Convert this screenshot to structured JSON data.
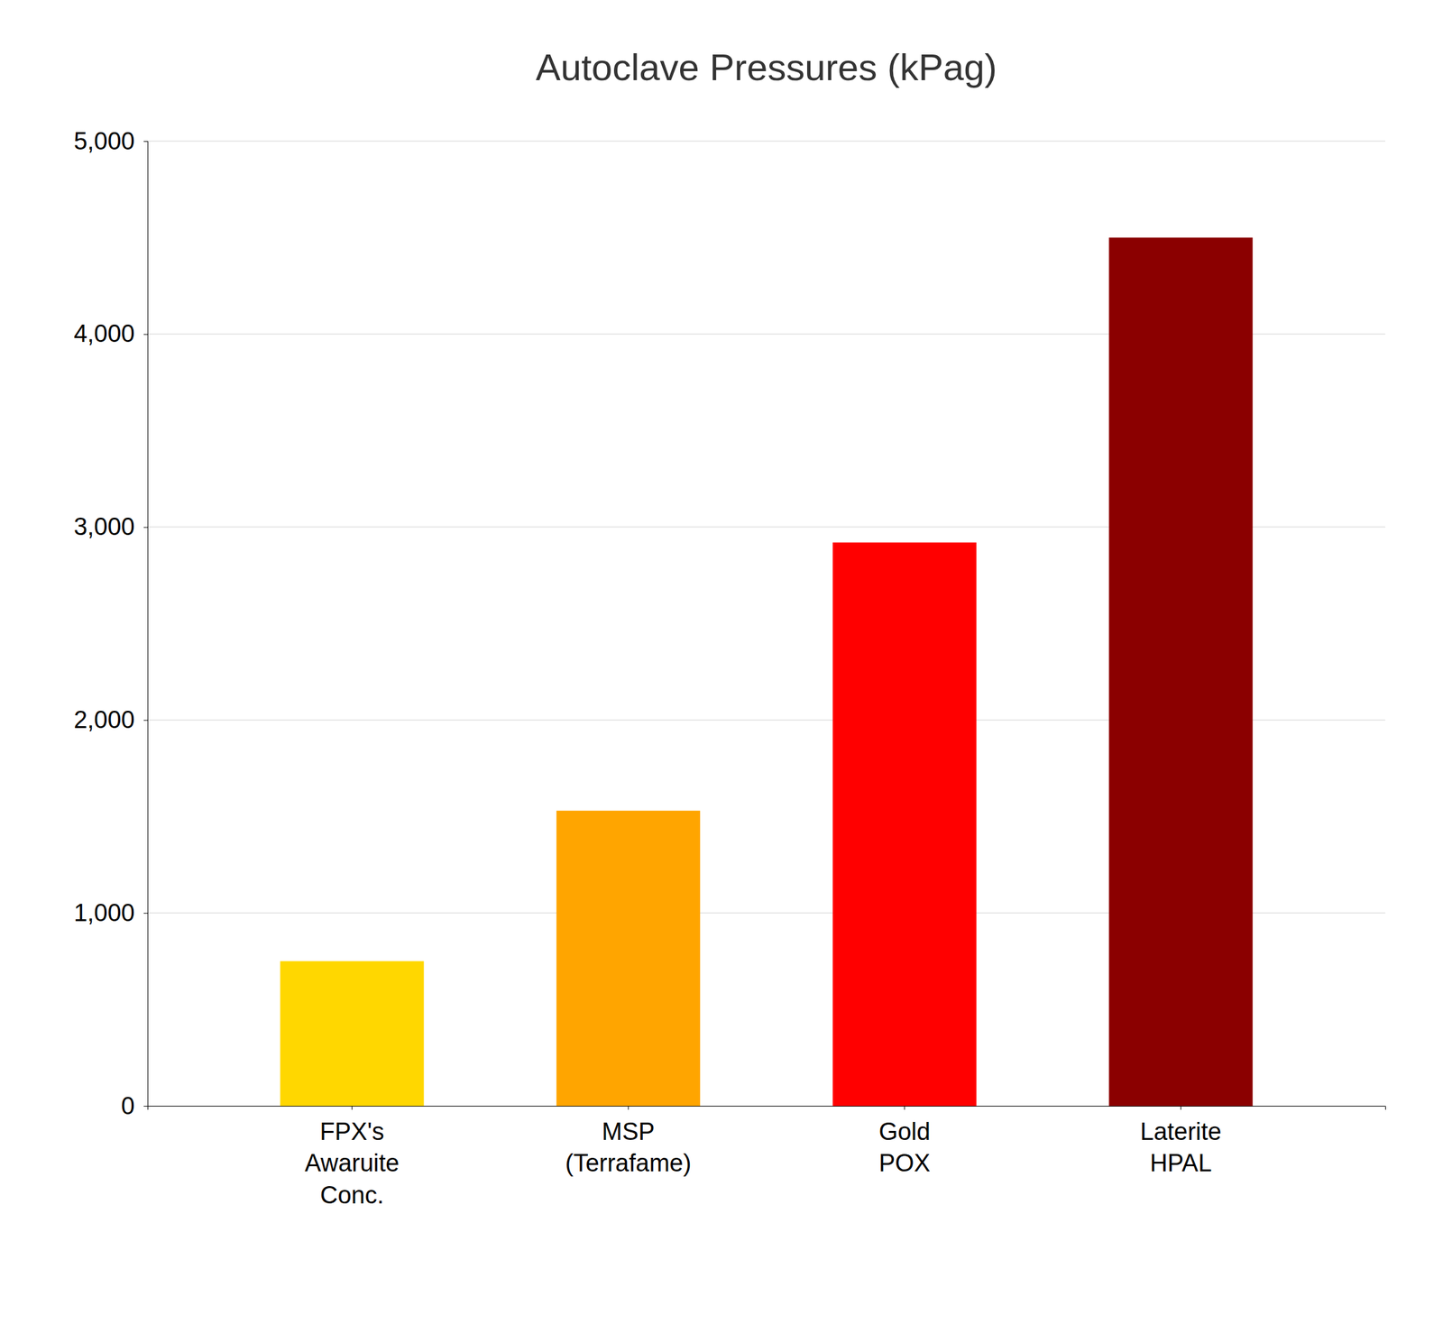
{
  "chart_data": {
    "type": "bar",
    "title": "Autoclave Pressures (kPag)",
    "categories": [
      "FPX's\nAwaruite\nConc.",
      "MSP\n(Terrafame)",
      "Gold\nPOX",
      "Laterite\nHPAL"
    ],
    "values": [
      750,
      1530,
      2920,
      4500
    ],
    "colors": [
      "#FFD700",
      "#FFA500",
      "#FF0000",
      "#8B0000"
    ],
    "ylim": [
      0,
      5000
    ],
    "yticks": [
      0,
      {
        "value": 1000,
        "label": "1,000"
      },
      {
        "value": 2000,
        "label": "2,000"
      },
      {
        "value": 3000,
        "label": "3,000"
      },
      {
        "value": 4000,
        "label": "4,000"
      },
      {
        "value": 5000,
        "label": "5,000"
      }
    ],
    "grid": true
  }
}
